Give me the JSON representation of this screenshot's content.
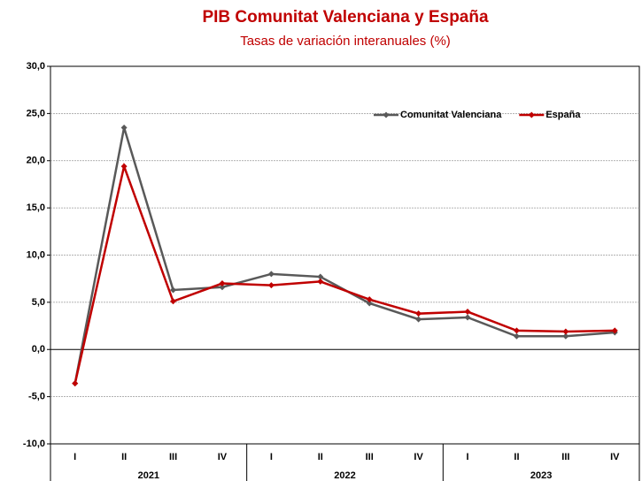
{
  "chart_data": {
    "type": "line",
    "title": "PIB Comunitat Valenciana y España",
    "subtitle": "Tasas de variación interanuales (%)",
    "categories": [
      "I",
      "II",
      "III",
      "IV",
      "I",
      "II",
      "III",
      "IV",
      "I",
      "II",
      "III",
      "IV"
    ],
    "year_groups": [
      "2021",
      "2022",
      "2023"
    ],
    "series": [
      {
        "name": "Comunitat Valenciana",
        "color": "#595959",
        "values": [
          -3.6,
          23.5,
          6.3,
          6.6,
          8.0,
          7.7,
          4.9,
          3.2,
          3.4,
          1.4,
          1.4,
          1.8
        ]
      },
      {
        "name": "España",
        "color": "#c00000",
        "values": [
          -3.6,
          19.4,
          5.1,
          7.0,
          6.8,
          7.2,
          5.3,
          3.8,
          4.0,
          2.0,
          1.9,
          2.0
        ]
      }
    ],
    "ylim": [
      -10,
      30
    ],
    "yticks": [
      {
        "value": -10,
        "label": "-10,0"
      },
      {
        "value": -5,
        "label": "-5,0"
      },
      {
        "value": 0,
        "label": "0,0"
      },
      {
        "value": 5,
        "label": "5,0"
      },
      {
        "value": 10,
        "label": "10,0"
      },
      {
        "value": 15,
        "label": "15,0"
      },
      {
        "value": 20,
        "label": "20,0"
      },
      {
        "value": 25,
        "label": "25,0"
      },
      {
        "value": 30,
        "label": "30,0"
      }
    ],
    "grid": true,
    "legend": "top-right"
  }
}
